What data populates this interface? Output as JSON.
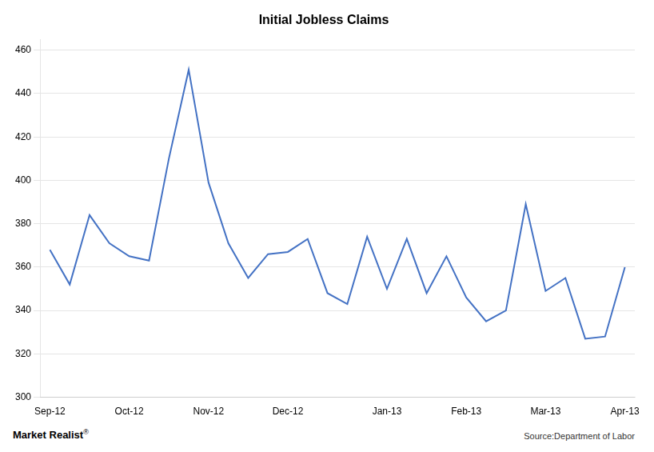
{
  "chart_data": {
    "type": "line",
    "title": "Initial Jobless Claims",
    "categories": [
      "Sep-12",
      null,
      null,
      null,
      "Oct-12",
      null,
      null,
      null,
      "Nov-12",
      null,
      null,
      null,
      "Dec-12",
      null,
      null,
      null,
      null,
      "Jan-13",
      null,
      null,
      null,
      "Feb-13",
      null,
      null,
      null,
      "Mar-13",
      null,
      null,
      null,
      "Apr-13"
    ],
    "values": [
      368,
      352,
      384,
      371,
      365,
      363,
      410,
      451,
      399,
      371,
      355,
      366,
      367,
      373,
      348,
      343,
      374,
      350,
      373,
      348,
      365,
      346,
      335,
      340,
      389,
      349,
      355,
      327,
      328,
      360
    ],
    "color": "#4472C4",
    "ylim": [
      300,
      465
    ],
    "yticks": [
      300,
      320,
      340,
      360,
      380,
      400,
      420,
      440,
      460
    ],
    "grid": true,
    "annotations": [
      "Market Realist",
      "®",
      "Source:Department of Labor"
    ]
  }
}
